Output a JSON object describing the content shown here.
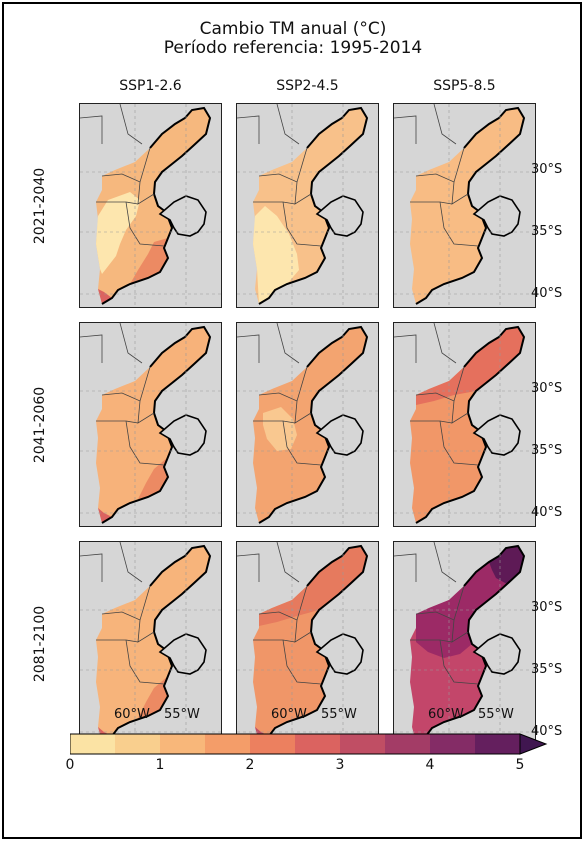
{
  "title_line1": "Cambio TM anual (°C)",
  "title_line2": "Período referencia: 1995-2014",
  "scenarios": [
    "SSP1-2.6",
    "SSP2-4.5",
    "SSP5-8.5"
  ],
  "periods": [
    "2021-2040",
    "2041-2060",
    "2081-2100"
  ],
  "lat_labels": [
    "30°S",
    "35°S",
    "40°S"
  ],
  "lon_labels": [
    "60°W",
    "55°W"
  ],
  "colorbar": {
    "ticks": [
      "0",
      "1",
      "2",
      "3",
      "4",
      "5"
    ],
    "min": 0,
    "max": 5,
    "step": 0.5,
    "colors": [
      "#fbe3a4",
      "#f9cf8e",
      "#f8b77a",
      "#f49d69",
      "#ec805f",
      "#db6360",
      "#c04e64",
      "#a33c66",
      "#842c66",
      "#641f5e",
      "#401650"
    ]
  },
  "frame_color": "#000000",
  "land_color": "#d6d6d6"
}
